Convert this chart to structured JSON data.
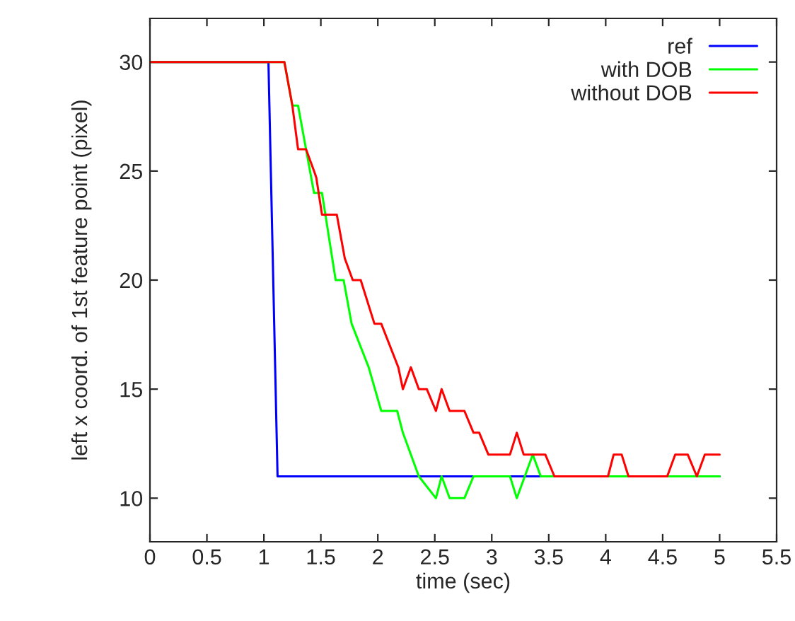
{
  "chart_data": {
    "type": "line",
    "xlabel": "time (sec)",
    "ylabel": "left x coord. of 1st feature point (pixel)",
    "xlim": [
      0,
      5.5
    ],
    "ylim": [
      8,
      32
    ],
    "xticks": [
      0,
      0.5,
      1,
      1.5,
      2,
      2.5,
      3,
      3.5,
      4,
      4.5,
      5,
      5.5
    ],
    "yticks": [
      10,
      15,
      20,
      25,
      30
    ],
    "grid": false,
    "legend": "top right",
    "series": [
      {
        "name": "ref",
        "color": "#0000ff",
        "x": [
          0,
          1.04,
          1.12,
          5
        ],
        "values": [
          30,
          30,
          11,
          11
        ]
      },
      {
        "name": "with DOB",
        "color": "#00ff00",
        "x": [
          0,
          1.18,
          1.25,
          1.3,
          1.44,
          1.51,
          1.63,
          1.7,
          1.77,
          1.92,
          2.03,
          2.17,
          2.22,
          2.36,
          2.51,
          2.56,
          2.63,
          2.76,
          2.84,
          3.16,
          3.22,
          3.36,
          3.43,
          5
        ],
        "values": [
          30,
          30,
          28,
          28,
          24,
          24,
          20,
          20,
          18,
          16,
          14,
          14,
          13,
          11,
          10,
          11,
          10,
          10,
          11,
          11,
          10,
          12,
          11,
          11
        ]
      },
      {
        "name": "without DOB",
        "color": "#ff0000",
        "x": [
          0,
          1.18,
          1.25,
          1.3,
          1.37,
          1.44,
          1.46,
          1.51,
          1.64,
          1.71,
          1.78,
          1.85,
          1.97,
          2.03,
          2.18,
          2.22,
          2.29,
          2.36,
          2.43,
          2.51,
          2.56,
          2.63,
          2.76,
          2.84,
          2.89,
          2.97,
          3.16,
          3.22,
          3.28,
          3.47,
          3.55,
          4.02,
          4.07,
          4.14,
          4.2,
          4.54,
          4.61,
          4.72,
          4.8,
          4.87,
          5
        ],
        "values": [
          30,
          30,
          28,
          26,
          26,
          25,
          24.7,
          23,
          23,
          21,
          20,
          20,
          18,
          18,
          16,
          15,
          16,
          15,
          15,
          14,
          15,
          14,
          14,
          13,
          13,
          12,
          12,
          13,
          12,
          12,
          11,
          11,
          12,
          12,
          11,
          11,
          12,
          12,
          11,
          12,
          12
        ]
      }
    ]
  }
}
